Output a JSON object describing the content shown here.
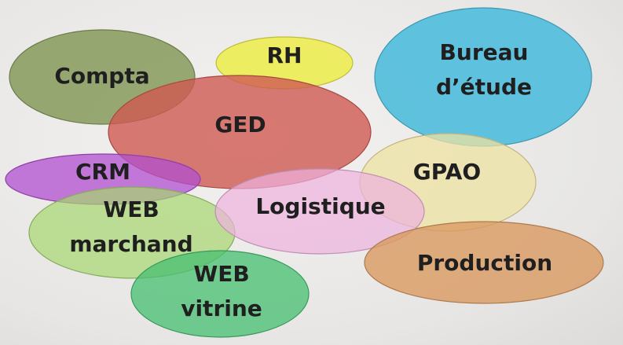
{
  "diagram": {
    "domains": [
      {
        "id": "compta",
        "lines": [
          "Compta"
        ],
        "color": "#869a5c"
      },
      {
        "id": "rh",
        "lines": [
          "RH"
        ],
        "color": "#ecec4a"
      },
      {
        "id": "bureau-etude",
        "lines": [
          "Bureau",
          "d’étude"
        ],
        "color": "#4fbcdb"
      },
      {
        "id": "ged",
        "lines": [
          "GED"
        ],
        "color": "#d05a52"
      },
      {
        "id": "crm",
        "lines": [
          "CRM"
        ],
        "color": "#b24fd0"
      },
      {
        "id": "gpao",
        "lines": [
          "GPAO"
        ],
        "color": "#ede2a2"
      },
      {
        "id": "web-marchand",
        "lines": [
          "WEB",
          "marchand"
        ],
        "color": "#a6d66f"
      },
      {
        "id": "logistique",
        "lines": [
          "Logistique"
        ],
        "color": "#eeb2de"
      },
      {
        "id": "production",
        "lines": [
          "Production"
        ],
        "color": "#d99a62"
      },
      {
        "id": "web-vitrine",
        "lines": [
          "WEB",
          "vitrine"
        ],
        "color": "#46bf70"
      }
    ]
  }
}
